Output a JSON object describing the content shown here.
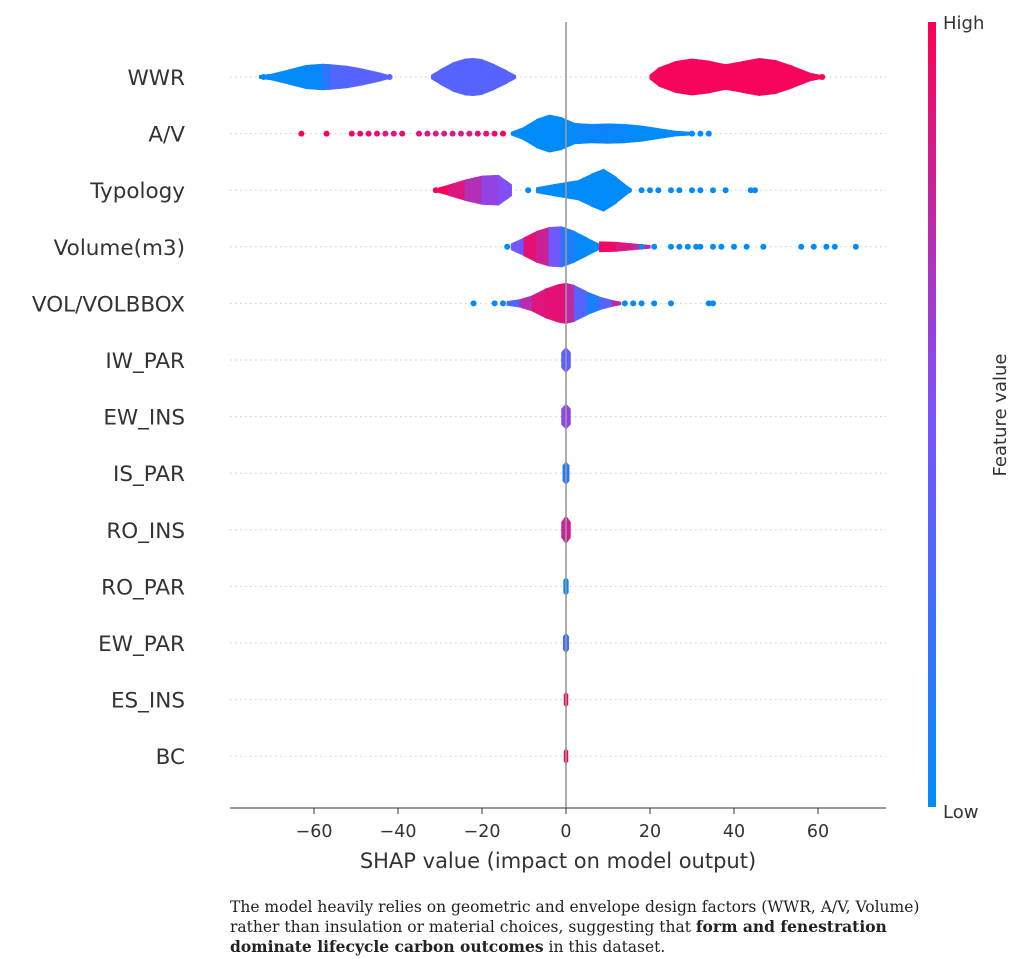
{
  "chart_data": {
    "type": "violin",
    "xlabel": "SHAP value (impact on model output)",
    "xlim": [
      -80,
      75
    ],
    "xticks": [
      -60,
      -40,
      -20,
      0,
      20,
      40,
      60
    ],
    "xtick_labels": [
      "−60",
      "−40",
      "−20",
      "0",
      "20",
      "40",
      "60"
    ],
    "colorbar": {
      "label": "Feature value",
      "high_label": "High",
      "low_label": "Low",
      "low_color": "#008bfb",
      "high_color": "#ff0052"
    },
    "features": [
      {
        "name": "WWR",
        "violins": [
          {
            "x": [
              -73,
              -70,
              -66,
              -62,
              -58,
              -56,
              -52,
              -48,
              -44,
              -42
            ],
            "w": [
              0.05,
              0.12,
              0.28,
              0.45,
              0.5,
              0.48,
              0.42,
              0.3,
              0.15,
              0.06
            ],
            "c": [
              0,
              0,
              0,
              0,
              0.05,
              0.3,
              0.35,
              0.35,
              0.35,
              0.35
            ]
          },
          {
            "x": [
              -32,
              -30,
              -27,
              -24,
              -22,
              -20,
              -17,
              -14,
              -12
            ],
            "w": [
              0.08,
              0.28,
              0.55,
              0.7,
              0.72,
              0.68,
              0.48,
              0.24,
              0.06
            ],
            "c": [
              0.35,
              0.35,
              0.35,
              0.35,
              0.35,
              0.35,
              0.35,
              0.35,
              0.35
            ]
          },
          {
            "x": [
              20,
              22,
              26,
              30,
              34,
              38,
              42,
              46,
              50,
              54,
              58,
              61
            ],
            "w": [
              0.08,
              0.35,
              0.6,
              0.7,
              0.62,
              0.48,
              0.6,
              0.72,
              0.64,
              0.42,
              0.16,
              0.05
            ],
            "c": [
              0.97,
              0.97,
              0.97,
              0.97,
              0.97,
              0.97,
              0.97,
              0.97,
              0.97,
              0.97,
              0.97,
              0.97
            ]
          }
        ],
        "dots": [
          {
            "x": -72,
            "c": 0
          },
          {
            "x": -42,
            "c": 0.35
          },
          {
            "x": 61,
            "c": 1
          }
        ]
      },
      {
        "name": "A/V",
        "violins": [
          {
            "x": [
              -13,
              -10,
              -7,
              -4,
              -1,
              2,
              6,
              10,
              14,
              18,
              22,
              26,
              30
            ],
            "w": [
              0.06,
              0.25,
              0.55,
              0.72,
              0.62,
              0.4,
              0.36,
              0.38,
              0.36,
              0.3,
              0.2,
              0.1,
              0.04
            ],
            "c": [
              0,
              0,
              0,
              0,
              0,
              0.02,
              0.05,
              0.05,
              0.03,
              0,
              0,
              0,
              0
            ]
          }
        ],
        "dots": [
          {
            "x": -63,
            "c": 1
          },
          {
            "x": -57,
            "c": 1
          },
          {
            "x": -51,
            "c": 0.95
          },
          {
            "x": -49,
            "c": 0.95
          },
          {
            "x": -47,
            "c": 0.9
          },
          {
            "x": -45,
            "c": 0.9
          },
          {
            "x": -43,
            "c": 0.85
          },
          {
            "x": -41,
            "c": 0.85
          },
          {
            "x": -39,
            "c": 0.9
          },
          {
            "x": -35,
            "c": 0.9
          },
          {
            "x": -33,
            "c": 0.85
          },
          {
            "x": -31,
            "c": 0.85
          },
          {
            "x": -29,
            "c": 0.8
          },
          {
            "x": -27,
            "c": 0.8
          },
          {
            "x": -25,
            "c": 0.8
          },
          {
            "x": -23,
            "c": 0.85
          },
          {
            "x": -21,
            "c": 0.9
          },
          {
            "x": -19,
            "c": 0.9
          },
          {
            "x": -17,
            "c": 0.95
          },
          {
            "x": -15,
            "c": 1
          },
          {
            "x": 30,
            "c": 0
          },
          {
            "x": 32,
            "c": 0
          },
          {
            "x": 34,
            "c": 0
          }
        ]
      },
      {
        "name": "Typology",
        "violins": [
          {
            "x": [
              -31,
              -28,
              -24,
              -20,
              -16,
              -13
            ],
            "w": [
              0.06,
              0.2,
              0.4,
              0.55,
              0.58,
              0.22
            ],
            "c": [
              1,
              0.95,
              0.8,
              0.62,
              0.55,
              0.5
            ]
          },
          {
            "x": [
              -7,
              -3,
              0,
              3,
              6,
              9,
              12,
              15
            ],
            "w": [
              0.1,
              0.22,
              0.3,
              0.38,
              0.62,
              0.82,
              0.5,
              0.1
            ],
            "c": [
              0,
              0,
              0,
              0,
              0,
              0,
              0,
              0
            ]
          }
        ],
        "dots": [
          {
            "x": -31,
            "c": 1
          },
          {
            "x": -9,
            "c": 0
          },
          {
            "x": 15,
            "c": 0
          },
          {
            "x": 18,
            "c": 0
          },
          {
            "x": 20,
            "c": 0
          },
          {
            "x": 22,
            "c": 0
          },
          {
            "x": 25,
            "c": 0
          },
          {
            "x": 27,
            "c": 0
          },
          {
            "x": 30,
            "c": 0
          },
          {
            "x": 32,
            "c": 0
          },
          {
            "x": 35,
            "c": 0
          },
          {
            "x": 38,
            "c": 0
          },
          {
            "x": 44,
            "c": 0
          },
          {
            "x": 45,
            "c": 0
          }
        ]
      },
      {
        "name": "Volume(m3)",
        "violins": [
          {
            "x": [
              -13,
              -10,
              -7,
              -4,
              -1,
              2,
              5,
              8
            ],
            "w": [
              0.12,
              0.35,
              0.6,
              0.75,
              0.78,
              0.6,
              0.35,
              0.1
            ],
            "c": [
              0,
              0.9,
              0.9,
              0.7,
              0.2,
              0.05,
              0,
              0
            ]
          },
          {
            "x": [
              8,
              12,
              16,
              20
            ],
            "w": [
              0.2,
              0.18,
              0.12,
              0.06
            ],
            "c": [
              1,
              0.9,
              0.8,
              0.7
            ]
          }
        ],
        "dots": [
          {
            "x": -14,
            "c": 0
          },
          {
            "x": 18,
            "c": 0
          },
          {
            "x": 21,
            "c": 0
          },
          {
            "x": 25,
            "c": 0
          },
          {
            "x": 27,
            "c": 0
          },
          {
            "x": 29,
            "c": 0
          },
          {
            "x": 31,
            "c": 0
          },
          {
            "x": 32,
            "c": 0
          },
          {
            "x": 35,
            "c": 0
          },
          {
            "x": 37,
            "c": 0
          },
          {
            "x": 40,
            "c": 0
          },
          {
            "x": 43,
            "c": 0
          },
          {
            "x": 47,
            "c": 0
          },
          {
            "x": 56,
            "c": 0
          },
          {
            "x": 59,
            "c": 0
          },
          {
            "x": 62,
            "c": 0
          },
          {
            "x": 64,
            "c": 0
          },
          {
            "x": 69,
            "c": 0
          }
        ]
      },
      {
        "name": "VOL/VOLBBOX",
        "violins": [
          {
            "x": [
              -14,
              -11,
              -8,
              -5,
              -2,
              0,
              2,
              5,
              8,
              11,
              13
            ],
            "w": [
              0.08,
              0.15,
              0.3,
              0.55,
              0.72,
              0.78,
              0.7,
              0.45,
              0.25,
              0.12,
              0.05
            ],
            "c": [
              0,
              0.6,
              0.85,
              0.9,
              0.9,
              0.9,
              0.6,
              0.1,
              0.1,
              0.6,
              0.9
            ]
          }
        ],
        "dots": [
          {
            "x": -22,
            "c": 0
          },
          {
            "x": -17,
            "c": 0
          },
          {
            "x": -15,
            "c": 0
          },
          {
            "x": 14,
            "c": 0
          },
          {
            "x": 16,
            "c": 0
          },
          {
            "x": 18,
            "c": 0
          },
          {
            "x": 21,
            "c": 0
          },
          {
            "x": 25,
            "c": 0
          },
          {
            "x": 34,
            "c": 0
          },
          {
            "x": 35,
            "c": 0
          }
        ]
      },
      {
        "name": "IW_PAR",
        "violins": [
          {
            "x": [
              -1,
              0,
              1
            ],
            "w": [
              0.3,
              0.5,
              0.3
            ],
            "c": [
              0.2,
              0.5,
              0.3
            ]
          }
        ],
        "dots": []
      },
      {
        "name": "EW_INS",
        "violins": [
          {
            "x": [
              -1,
              0,
              1
            ],
            "w": [
              0.3,
              0.5,
              0.3
            ],
            "c": [
              0.5,
              0.6,
              0.6
            ]
          }
        ],
        "dots": []
      },
      {
        "name": "IS_PAR",
        "violins": [
          {
            "x": [
              -0.7,
              0,
              0.7
            ],
            "w": [
              0.3,
              0.45,
              0.3
            ],
            "c": [
              0.1,
              0.2,
              0.1
            ]
          }
        ],
        "dots": []
      },
      {
        "name": "RO_INS",
        "violins": [
          {
            "x": [
              -1,
              0,
              1
            ],
            "w": [
              0.3,
              0.55,
              0.3
            ],
            "c": [
              0.7,
              0.85,
              0.8
            ]
          }
        ],
        "dots": []
      },
      {
        "name": "RO_PAR",
        "violins": [
          {
            "x": [
              -0.5,
              0,
              0.5
            ],
            "w": [
              0.25,
              0.35,
              0.25
            ],
            "c": [
              0,
              0,
              0
            ]
          }
        ],
        "dots": []
      },
      {
        "name": "EW_PAR",
        "violins": [
          {
            "x": [
              -0.6,
              0,
              0.6
            ],
            "w": [
              0.25,
              0.4,
              0.25
            ],
            "c": [
              0.2,
              0.3,
              0.2
            ]
          }
        ],
        "dots": []
      },
      {
        "name": "ES_INS",
        "violins": [
          {
            "x": [
              -0.4,
              0,
              0.4
            ],
            "w": [
              0.2,
              0.3,
              0.2
            ],
            "c": [
              1,
              1,
              1
            ]
          }
        ],
        "dots": []
      },
      {
        "name": "BC",
        "violins": [
          {
            "x": [
              -0.4,
              0,
              0.4
            ],
            "w": [
              0.2,
              0.3,
              0.2
            ],
            "c": [
              1,
              1,
              1
            ]
          }
        ],
        "dots": []
      }
    ]
  },
  "caption": {
    "line1": "The model heavily relies on geometric and envelope design factors (WWR, A/V, Volume)",
    "line2_plain": "rather than insulation or material choices, suggesting that ",
    "line2_bold": "form and fenestration",
    "line3_bold": "dominate lifecycle carbon outcomes",
    "line3_plain": " in this dataset."
  }
}
